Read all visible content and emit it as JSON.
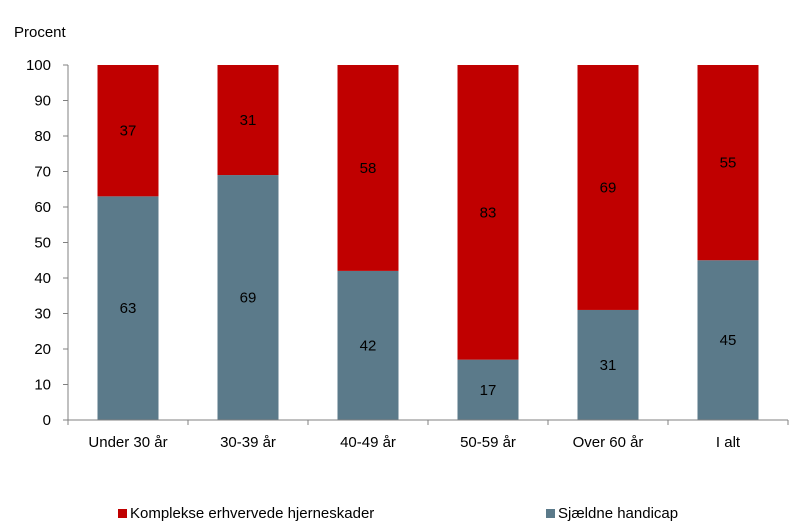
{
  "chart_data": {
    "type": "bar",
    "stacked": true,
    "ylabel": "Procent",
    "ylim": [
      0,
      100
    ],
    "yticks": [
      0,
      10,
      20,
      30,
      40,
      50,
      60,
      70,
      80,
      90,
      100
    ],
    "categories": [
      "Under 30 år",
      "30-39 år",
      "40-49 år",
      "50-59 år",
      "Over 60 år",
      "I alt"
    ],
    "series": [
      {
        "name": "Sjældne handicap",
        "color": "#5B7A8A",
        "values": [
          63,
          69,
          42,
          17,
          31,
          45
        ]
      },
      {
        "name": "Komplekse erhvervede hjerneskader",
        "color": "#C00000",
        "values": [
          37,
          31,
          58,
          83,
          69,
          55
        ]
      }
    ],
    "legend": {
      "placement": "bottom",
      "order": [
        "Komplekse erhvervede hjerneskader",
        "Sjældne handicap"
      ]
    },
    "grid": false
  }
}
